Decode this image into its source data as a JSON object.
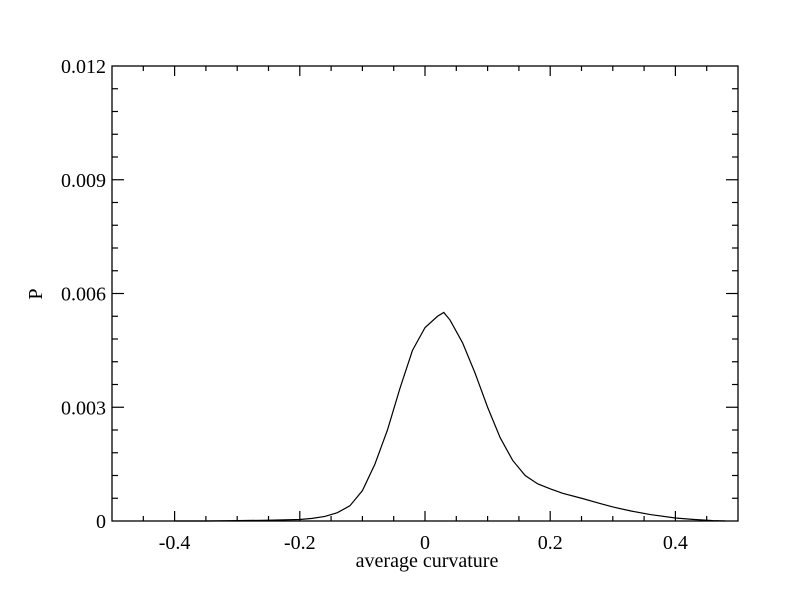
{
  "chart_data": {
    "type": "line",
    "title": "",
    "xlabel": "average curvature",
    "ylabel": "P",
    "xlim": [
      -0.5,
      0.5
    ],
    "ylim": [
      0,
      0.012
    ],
    "grid": false,
    "legend": "none",
    "x_ticks": [
      -0.4,
      -0.2,
      0,
      0.2,
      0.4
    ],
    "x_tick_labels": [
      "-0.4",
      "-0.2",
      "0",
      "0.2",
      "0.4"
    ],
    "y_ticks": [
      0,
      0.003,
      0.006,
      0.009,
      0.012
    ],
    "y_tick_labels": [
      "0",
      "0.003",
      "0.006",
      "0.009",
      "0.012"
    ],
    "series": [
      {
        "color": "#000000",
        "x": [
          -0.4,
          -0.35,
          -0.3,
          -0.25,
          -0.2,
          -0.18,
          -0.16,
          -0.14,
          -0.12,
          -0.1,
          -0.08,
          -0.06,
          -0.04,
          -0.02,
          0.0,
          0.02,
          0.03,
          0.04,
          0.06,
          0.08,
          0.1,
          0.12,
          0.14,
          0.16,
          0.18,
          0.2,
          0.22,
          0.25,
          0.28,
          0.3,
          0.33,
          0.36,
          0.4,
          0.43,
          0.46,
          0.48
        ],
        "y": [
          0.0,
          0.0,
          1e-05,
          2e-05,
          4e-05,
          7e-05,
          0.00012,
          0.00022,
          0.0004,
          0.0008,
          0.0015,
          0.0024,
          0.0035,
          0.0045,
          0.0051,
          0.0054,
          0.0055,
          0.0053,
          0.0047,
          0.0039,
          0.003,
          0.0022,
          0.0016,
          0.0012,
          0.00098,
          0.00085,
          0.00073,
          0.0006,
          0.00046,
          0.00037,
          0.00026,
          0.00017,
          8e-05,
          4e-05,
          1e-05,
          0.0
        ]
      }
    ]
  }
}
